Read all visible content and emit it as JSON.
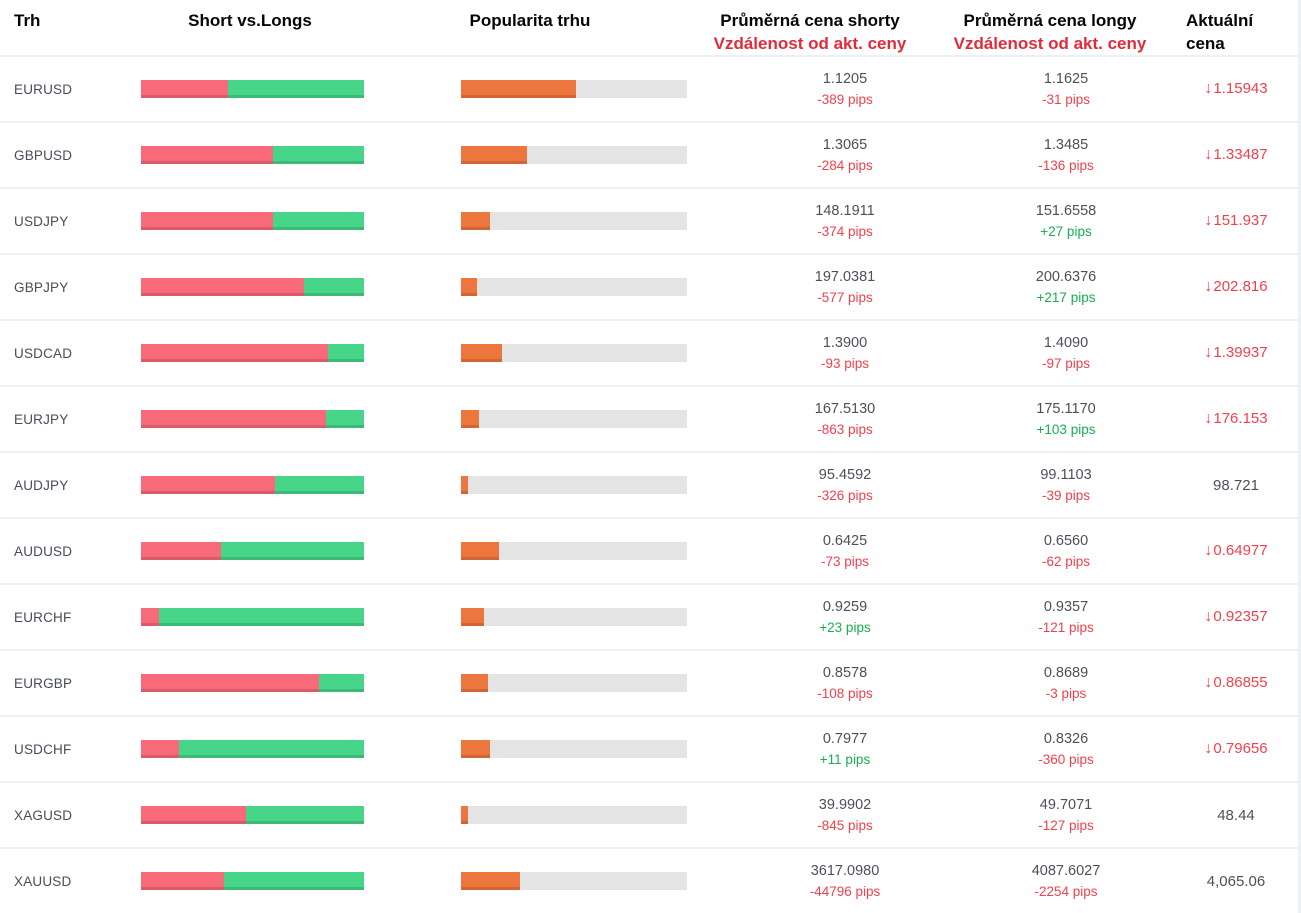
{
  "header": {
    "market": "Trh",
    "short_vs_longs": "Short vs.Longs",
    "popularity": "Popularita trhu",
    "avg_short_title": "Průměrná cena shorty",
    "avg_short_subtitle": "Vzdálenost od akt. ceny",
    "avg_long_title": "Průměrná cena longy",
    "avg_long_subtitle": "Vzdálenost od akt. ceny",
    "current_line1": "Aktuální",
    "current_line2": "cena"
  },
  "icons": {
    "down_arrow": "↓"
  },
  "colors": {
    "short_red": "#F8697A",
    "long_green": "#47D58A",
    "popularity_orange": "#ED753E",
    "track_gray": "#E4E4E4",
    "pips_red": "#F2414D",
    "pips_green": "#17AF52",
    "header_red": "#E12B38",
    "divider": "#EDF1F5"
  },
  "rows": [
    {
      "market": "EURUSD",
      "short_pct": 39,
      "popularity_pct": 51,
      "avg_short_price": "1.1205",
      "avg_short_pips": "-389 pips",
      "short_pips_positive": false,
      "avg_long_price": "1.1625",
      "avg_long_pips": "-31 pips",
      "long_pips_positive": false,
      "current_price": "1.15943",
      "current_direction": "down"
    },
    {
      "market": "GBPUSD",
      "short_pct": 59,
      "popularity_pct": 29,
      "avg_short_price": "1.3065",
      "avg_short_pips": "-284 pips",
      "short_pips_positive": false,
      "avg_long_price": "1.3485",
      "avg_long_pips": "-136 pips",
      "long_pips_positive": false,
      "current_price": "1.33487",
      "current_direction": "down"
    },
    {
      "market": "USDJPY",
      "short_pct": 59,
      "popularity_pct": 13,
      "avg_short_price": "148.1911",
      "avg_short_pips": "-374 pips",
      "short_pips_positive": false,
      "avg_long_price": "151.6558",
      "avg_long_pips": "+27 pips",
      "long_pips_positive": true,
      "current_price": "151.937",
      "current_direction": "down"
    },
    {
      "market": "GBPJPY",
      "short_pct": 73,
      "popularity_pct": 7,
      "avg_short_price": "197.0381",
      "avg_short_pips": "-577 pips",
      "short_pips_positive": false,
      "avg_long_price": "200.6376",
      "avg_long_pips": "+217 pips",
      "long_pips_positive": true,
      "current_price": "202.816",
      "current_direction": "down"
    },
    {
      "market": "USDCAD",
      "short_pct": 84,
      "popularity_pct": 18,
      "avg_short_price": "1.3900",
      "avg_short_pips": "-93 pips",
      "short_pips_positive": false,
      "avg_long_price": "1.4090",
      "avg_long_pips": "-97 pips",
      "long_pips_positive": false,
      "current_price": "1.39937",
      "current_direction": "down"
    },
    {
      "market": "EURJPY",
      "short_pct": 83,
      "popularity_pct": 8,
      "avg_short_price": "167.5130",
      "avg_short_pips": "-863 pips",
      "short_pips_positive": false,
      "avg_long_price": "175.1170",
      "avg_long_pips": "+103 pips",
      "long_pips_positive": true,
      "current_price": "176.153",
      "current_direction": "down"
    },
    {
      "market": "AUDJPY",
      "short_pct": 60,
      "popularity_pct": 3,
      "avg_short_price": "95.4592",
      "avg_short_pips": "-326 pips",
      "short_pips_positive": false,
      "avg_long_price": "99.1103",
      "avg_long_pips": "-39 pips",
      "long_pips_positive": false,
      "current_price": "98.721",
      "current_direction": "none"
    },
    {
      "market": "AUDUSD",
      "short_pct": 36,
      "popularity_pct": 17,
      "avg_short_price": "0.6425",
      "avg_short_pips": "-73 pips",
      "short_pips_positive": false,
      "avg_long_price": "0.6560",
      "avg_long_pips": "-62 pips",
      "long_pips_positive": false,
      "current_price": "0.64977",
      "current_direction": "down"
    },
    {
      "market": "EURCHF",
      "short_pct": 8,
      "popularity_pct": 10,
      "avg_short_price": "0.9259",
      "avg_short_pips": "+23 pips",
      "short_pips_positive": true,
      "avg_long_price": "0.9357",
      "avg_long_pips": "-121 pips",
      "long_pips_positive": false,
      "current_price": "0.92357",
      "current_direction": "down"
    },
    {
      "market": "EURGBP",
      "short_pct": 80,
      "popularity_pct": 12,
      "avg_short_price": "0.8578",
      "avg_short_pips": "-108 pips",
      "short_pips_positive": false,
      "avg_long_price": "0.8689",
      "avg_long_pips": "-3 pips",
      "long_pips_positive": false,
      "current_price": "0.86855",
      "current_direction": "down"
    },
    {
      "market": "USDCHF",
      "short_pct": 17,
      "popularity_pct": 13,
      "avg_short_price": "0.7977",
      "avg_short_pips": "+11 pips",
      "short_pips_positive": true,
      "avg_long_price": "0.8326",
      "avg_long_pips": "-360 pips",
      "long_pips_positive": false,
      "current_price": "0.79656",
      "current_direction": "down"
    },
    {
      "market": "XAGUSD",
      "short_pct": 47,
      "popularity_pct": 3,
      "avg_short_price": "39.9902",
      "avg_short_pips": "-845 pips",
      "short_pips_positive": false,
      "avg_long_price": "49.7071",
      "avg_long_pips": "-127 pips",
      "long_pips_positive": false,
      "current_price": "48.44",
      "current_direction": "none"
    },
    {
      "market": "XAUUSD",
      "short_pct": 37,
      "popularity_pct": 26,
      "avg_short_price": "3617.0980",
      "avg_short_pips": "-44796 pips",
      "short_pips_positive": false,
      "avg_long_price": "4087.6027",
      "avg_long_pips": "-2254 pips",
      "long_pips_positive": false,
      "current_price": "4,065.06",
      "current_direction": "none"
    }
  ]
}
